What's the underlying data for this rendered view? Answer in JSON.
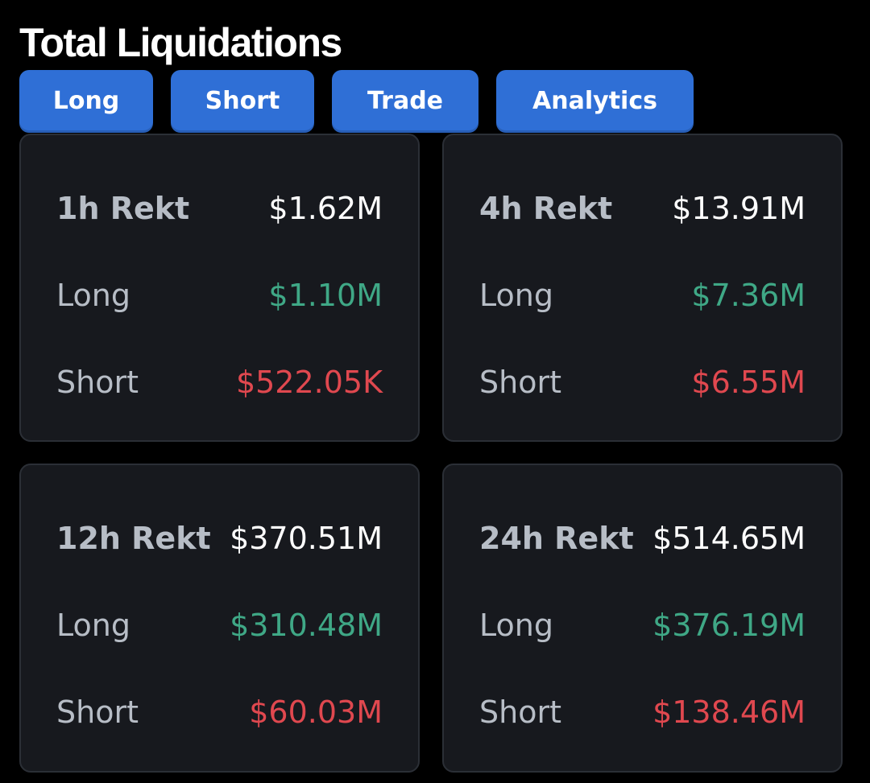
{
  "header": {
    "title": "Total Liquidations"
  },
  "tabs": [
    {
      "label": "Long"
    },
    {
      "label": "Short"
    },
    {
      "label": "Trade"
    },
    {
      "label": "Analytics"
    }
  ],
  "cards": [
    {
      "period_label": "1h Rekt",
      "total": "$1.62M",
      "long_label": "Long",
      "long": "$1.10M",
      "short_label": "Short",
      "short": "$522.05K"
    },
    {
      "period_label": "4h Rekt",
      "total": "$13.91M",
      "long_label": "Long",
      "long": "$7.36M",
      "short_label": "Short",
      "short": "$6.55M"
    },
    {
      "period_label": "12h Rekt",
      "total": "$370.51M",
      "long_label": "Long",
      "long": "$310.48M",
      "short_label": "Short",
      "short": "$60.03M"
    },
    {
      "period_label": "24h Rekt",
      "total": "$514.65M",
      "long_label": "Long",
      "long": "$376.19M",
      "short_label": "Short",
      "short": "$138.46M"
    }
  ],
  "colors": {
    "background": "#000000",
    "card": "#17191e",
    "tab": "#2f6fd6",
    "long": "#3fa886",
    "short": "#e0484f"
  }
}
